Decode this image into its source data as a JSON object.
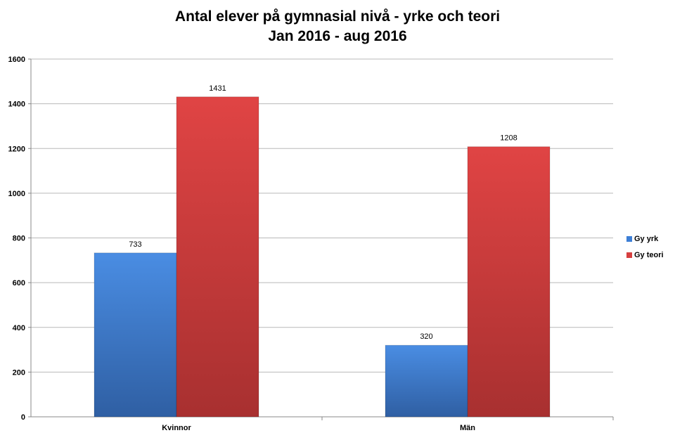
{
  "chart_data": {
    "type": "bar",
    "title": "Antal elever på gymnasial nivå - yrke och teori",
    "subtitle": "Jan 2016 - aug 2016",
    "categories": [
      "Kvinnor",
      "Män"
    ],
    "series": [
      {
        "name": "Gy yrk",
        "values": [
          733,
          320
        ],
        "color": "#3d7fd6"
      },
      {
        "name": "Gy teori",
        "values": [
          1431,
          1208
        ],
        "color": "#d64040"
      }
    ],
    "ylim": [
      0,
      1600
    ],
    "yticks": [
      0,
      200,
      400,
      600,
      800,
      1000,
      1200,
      1400,
      1600
    ],
    "ytick_labels": [
      "0",
      "200",
      "400",
      "600",
      "800",
      "1000",
      "1200",
      "1400",
      "1600"
    ],
    "xlabel": "",
    "ylabel": "",
    "grid": true,
    "legend_position": "right"
  }
}
